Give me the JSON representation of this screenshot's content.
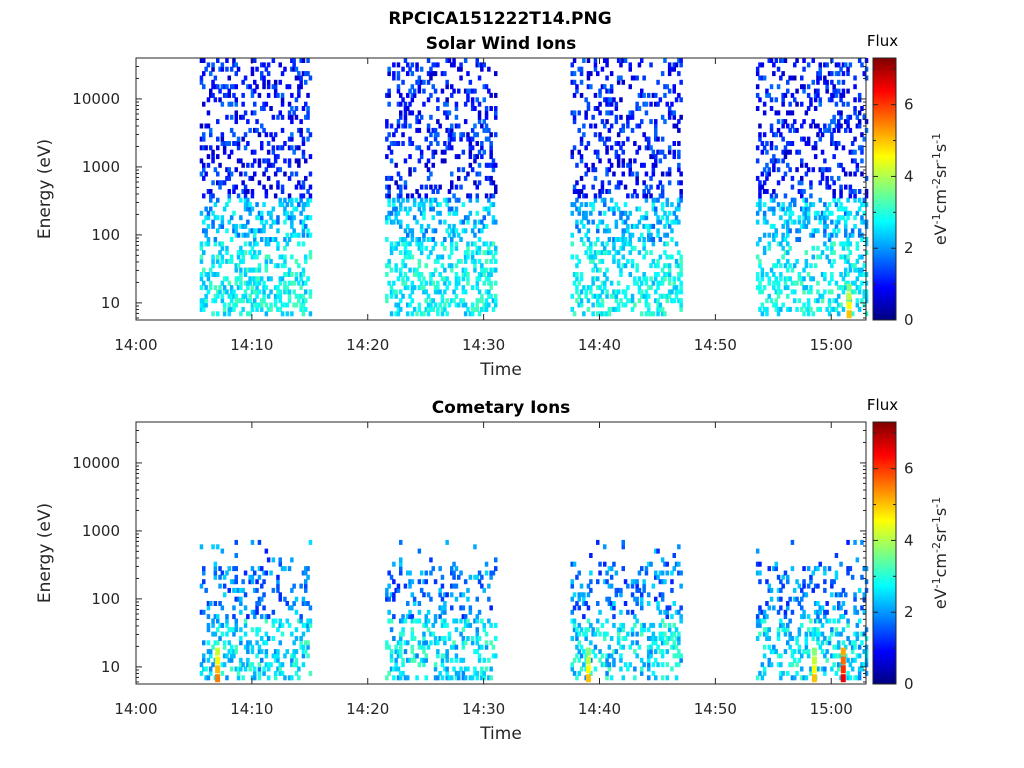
{
  "figure_title": "RPCICA151222T14.PNG",
  "chart_data": [
    {
      "type": "heatmap",
      "title": "Solar Wind Ions",
      "xlabel": "Time",
      "ylabel": "Energy (eV)",
      "y_scale": "log",
      "y_ticks": [
        10,
        100,
        1000,
        10000
      ],
      "ylim": [
        5.6,
        40000
      ],
      "x_ticks": [
        "14:00",
        "14:10",
        "14:20",
        "14:30",
        "14:40",
        "14:50",
        "15:00"
      ],
      "xlim": [
        "14:00",
        "15:03"
      ],
      "colorbar": {
        "title": "Flux",
        "label": "eV-1cm-2sr-1s-1",
        "ticks": [
          0,
          2,
          4,
          6
        ],
        "range": [
          0,
          7.3
        ],
        "colormap": "jet"
      },
      "active_intervals": [
        {
          "start": "14:05:30",
          "end": "14:15:00",
          "min_energy_eV": 5.8,
          "max_energy_eV": 40000
        },
        {
          "start": "14:21:30",
          "end": "14:31:00",
          "min_energy_eV": 5.8,
          "max_energy_eV": 40000
        },
        {
          "start": "14:37:30",
          "end": "14:47:00",
          "min_energy_eV": 5.8,
          "max_energy_eV": 40000
        },
        {
          "start": "14:53:30",
          "end": "15:03:00",
          "min_energy_eV": 5.8,
          "max_energy_eV": 40000
        }
      ],
      "peak_flux_regions": [
        {
          "time": "15:01:30",
          "energy_eV": 10,
          "flux": 5.0
        }
      ]
    },
    {
      "type": "heatmap",
      "title": "Cometary Ions",
      "xlabel": "Time",
      "ylabel": "Energy (eV)",
      "y_scale": "log",
      "y_ticks": [
        10,
        100,
        1000,
        10000
      ],
      "ylim": [
        5.6,
        40000
      ],
      "x_ticks": [
        "14:00",
        "14:10",
        "14:20",
        "14:30",
        "14:40",
        "14:50",
        "15:00"
      ],
      "xlim": [
        "14:00",
        "15:03"
      ],
      "colorbar": {
        "title": "Flux",
        "label": "eV-1cm-2sr-1s-1",
        "ticks": [
          0,
          2,
          4,
          6
        ],
        "range": [
          0,
          7.3
        ],
        "colormap": "jet"
      },
      "active_intervals": [
        {
          "start": "14:05:30",
          "end": "14:15:00",
          "min_energy_eV": 5.8,
          "max_energy_eV": 700
        },
        {
          "start": "14:21:30",
          "end": "14:31:00",
          "min_energy_eV": 5.8,
          "max_energy_eV": 700
        },
        {
          "start": "14:37:30",
          "end": "14:47:00",
          "min_energy_eV": 5.8,
          "max_energy_eV": 700
        },
        {
          "start": "14:53:30",
          "end": "15:03:00",
          "min_energy_eV": 5.8,
          "max_energy_eV": 700
        }
      ],
      "peak_flux_regions": [
        {
          "time": "14:07:00",
          "energy_eV": 10,
          "flux": 5.5
        },
        {
          "time": "14:39:00",
          "energy_eV": 10,
          "flux": 5.0
        },
        {
          "time": "14:58:30",
          "energy_eV": 10,
          "flux": 5.0
        },
        {
          "time": "15:01:00",
          "energy_eV": 10,
          "flux": 6.5
        }
      ]
    }
  ]
}
